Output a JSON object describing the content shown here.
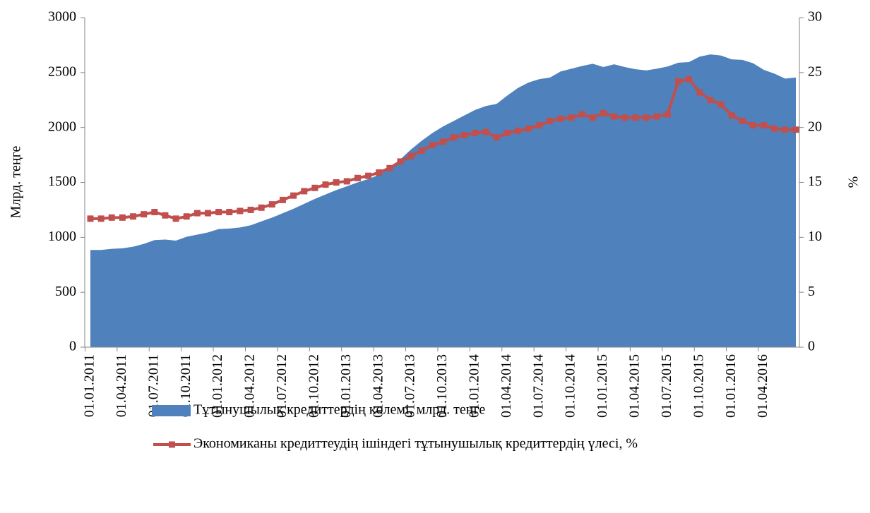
{
  "chart_data": {
    "type": "area-line",
    "y_label": "Млрд. теңге",
    "y2_label": "%",
    "categories": [
      "01.01.2011",
      null,
      null,
      "01.04.2011",
      null,
      null,
      "01.07.2011",
      null,
      null,
      "01.10.2011",
      null,
      null,
      "01.01.2012",
      null,
      null,
      "01.04.2012",
      null,
      null,
      "01.07.2012",
      null,
      null,
      "01.10.2012",
      null,
      null,
      "01.01.2013",
      null,
      null,
      "01.04.2013",
      null,
      null,
      "01.07.2013",
      null,
      null,
      "01.10.2013",
      null,
      null,
      "01.01.2014",
      null,
      null,
      "01.04.2014",
      null,
      null,
      "01.07.2014",
      null,
      null,
      "01.10.2014",
      null,
      null,
      "01.01.2015",
      null,
      null,
      "01.04.2015",
      null,
      null,
      "01.07.2015",
      null,
      null,
      "01.10.2015",
      null,
      null,
      "01.01.2016",
      null,
      null,
      "01.04.2016",
      null,
      null,
      null
    ],
    "series": [
      {
        "name": "Тұтынушылық кредиттердің көлемі, млрд. теңге",
        "color": "#4f81bd",
        "kind": "area",
        "values": [
          885,
          885,
          895,
          900,
          915,
          940,
          975,
          980,
          970,
          1005,
          1025,
          1045,
          1075,
          1080,
          1090,
          1110,
          1145,
          1180,
          1220,
          1260,
          1305,
          1350,
          1390,
          1430,
          1465,
          1500,
          1530,
          1570,
          1630,
          1710,
          1800,
          1880,
          1950,
          2010,
          2060,
          2110,
          2160,
          2195,
          2215,
          2290,
          2360,
          2410,
          2440,
          2455,
          2510,
          2535,
          2560,
          2580,
          2550,
          2575,
          2550,
          2530,
          2520,
          2535,
          2555,
          2590,
          2595,
          2645,
          2665,
          2655,
          2620,
          2615,
          2585,
          2525,
          2490,
          2445,
          2455
        ]
      },
      {
        "name": "Экономиканы кредиттеудің ішіндегі тұтынушылық кредиттердің үлесі, %",
        "color": "#c0504d",
        "kind": "line",
        "axis": "y2",
        "values": [
          11.7,
          11.7,
          11.8,
          11.8,
          11.9,
          12.1,
          12.3,
          12.0,
          11.7,
          11.9,
          12.2,
          12.2,
          12.3,
          12.3,
          12.4,
          12.5,
          12.7,
          13.0,
          13.4,
          13.8,
          14.2,
          14.5,
          14.8,
          15.0,
          15.1,
          15.4,
          15.6,
          15.9,
          16.3,
          16.9,
          17.4,
          17.9,
          18.4,
          18.7,
          19.1,
          19.3,
          19.5,
          19.6,
          19.1,
          19.5,
          19.7,
          19.9,
          20.2,
          20.6,
          20.8,
          20.9,
          21.2,
          20.9,
          21.3,
          21.0,
          20.9,
          20.9,
          20.9,
          21.0,
          21.2,
          24.2,
          24.4,
          23.2,
          22.5,
          22.1,
          21.1,
          20.6,
          20.2,
          20.2,
          19.9,
          19.8,
          19.8
        ]
      }
    ],
    "ylim": [
      0,
      3000
    ],
    "yticks": [
      0,
      500,
      1000,
      1500,
      2000,
      2500,
      3000
    ],
    "y2lim": [
      0,
      30
    ],
    "y2ticks": [
      0,
      5,
      10,
      15,
      20,
      25,
      30
    ]
  }
}
